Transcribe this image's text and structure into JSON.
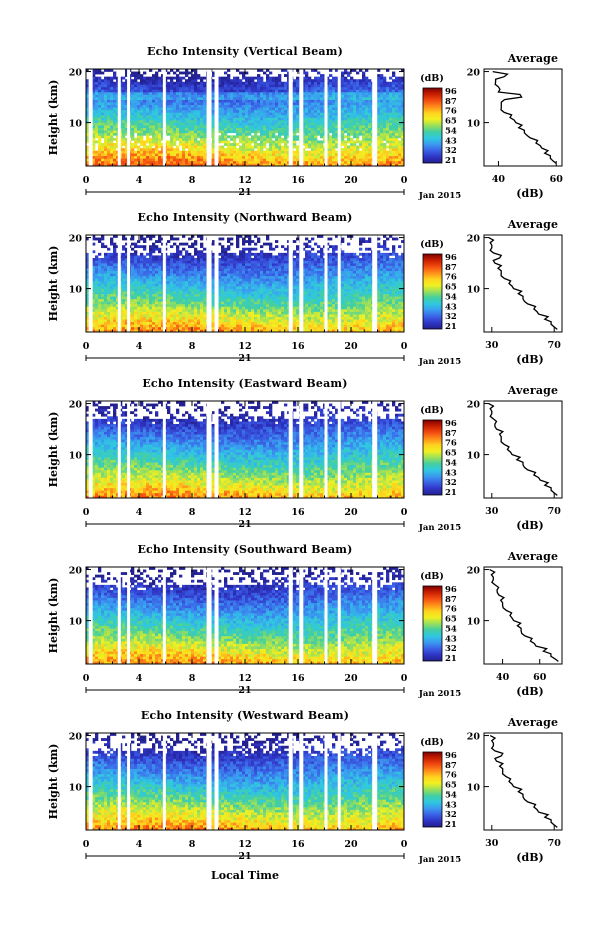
{
  "figure": {
    "x_label": "Local Time",
    "colorbar_unit": "(dB)",
    "colorbar_ticks": [
      "96",
      "87",
      "76",
      "65",
      "54",
      "43",
      "32",
      "21"
    ],
    "colorbar_colors": [
      "#7f0000",
      "#c81e00",
      "#f24d10",
      "#ff8c1a",
      "#ffd21f",
      "#f0f020",
      "#9be05a",
      "#43cfa0",
      "#2fc8e0",
      "#3a9af0",
      "#3a62e6",
      "#2f35c6",
      "#22208e"
    ]
  },
  "chart_data": [
    {
      "type": "heatmap",
      "title": "Echo Intensity (Vertical Beam)",
      "ylabel": "Height (km)",
      "xlabel": "Local Time",
      "x_ticks": [
        "0",
        "4",
        "8",
        "12",
        "16",
        "20",
        "0"
      ],
      "date_label": "21",
      "month_label": "Jan 2015",
      "y_ticks": [
        "10",
        "20"
      ],
      "xlim": [
        0,
        24
      ],
      "ylim": [
        1.5,
        20.5
      ],
      "colorbar": {
        "unit": "(dB)",
        "ticks": [
          96,
          87,
          76,
          65,
          54,
          43,
          32,
          21
        ]
      },
      "profile": {
        "title": "Average",
        "xlabel": "(dB)",
        "x_ticks": [
          "40",
          "60"
        ],
        "y_ticks": [
          "10",
          "20"
        ],
        "xlim": [
          35,
          62
        ],
        "ylim": [
          1.5,
          20.5
        ],
        "height_km": [
          2,
          3,
          4,
          5,
          6,
          7,
          8,
          9,
          10,
          11,
          12,
          13,
          14,
          15,
          16,
          17,
          18,
          19,
          20
        ],
        "avg_db": [
          60,
          58,
          56,
          55,
          53,
          51,
          49,
          47,
          46,
          44,
          42,
          41,
          41,
          48,
          40,
          40,
          39,
          42,
          38
        ]
      }
    },
    {
      "type": "heatmap",
      "title": "Echo Intensity (Northward Beam)",
      "ylabel": "Height (km)",
      "xlabel": "Local Time",
      "x_ticks": [
        "0",
        "4",
        "8",
        "12",
        "16",
        "20",
        "0"
      ],
      "date_label": "21",
      "month_label": "Jan 2015",
      "y_ticks": [
        "10",
        "20"
      ],
      "xlim": [
        0,
        24
      ],
      "ylim": [
        1.5,
        20.5
      ],
      "colorbar": {
        "unit": "(dB)",
        "ticks": [
          96,
          87,
          76,
          65,
          54,
          43,
          32,
          21
        ]
      },
      "profile": {
        "title": "Average",
        "xlabel": "(dB)",
        "x_ticks": [
          "30",
          "70"
        ],
        "y_ticks": [
          "10",
          "20"
        ],
        "xlim": [
          25,
          75
        ],
        "ylim": [
          1.5,
          20.5
        ],
        "height_km": [
          2,
          3,
          4,
          5,
          6,
          7,
          8,
          9,
          10,
          11,
          12,
          13,
          14,
          15,
          16,
          17,
          18,
          19,
          20
        ],
        "avg_db": [
          72,
          68,
          64,
          60,
          57,
          53,
          50,
          47,
          44,
          41,
          38,
          36,
          34,
          32,
          35,
          31,
          30,
          29,
          28
        ]
      }
    },
    {
      "type": "heatmap",
      "title": "Echo Intensity (Eastward Beam)",
      "ylabel": "Height (km)",
      "xlabel": "Local Time",
      "x_ticks": [
        "0",
        "4",
        "8",
        "12",
        "16",
        "20",
        "0"
      ],
      "date_label": "21",
      "month_label": "Jan 2015",
      "y_ticks": [
        "10",
        "20"
      ],
      "xlim": [
        0,
        24
      ],
      "ylim": [
        1.5,
        20.5
      ],
      "colorbar": {
        "unit": "(dB)",
        "ticks": [
          96,
          87,
          76,
          65,
          54,
          43,
          32,
          21
        ]
      },
      "profile": {
        "title": "Average",
        "xlabel": "(dB)",
        "x_ticks": [
          "30",
          "70"
        ],
        "y_ticks": [
          "10",
          "20"
        ],
        "xlim": [
          25,
          75
        ],
        "ylim": [
          1.5,
          20.5
        ],
        "height_km": [
          2,
          3,
          4,
          5,
          6,
          7,
          8,
          9,
          10,
          11,
          12,
          13,
          14,
          15,
          16,
          17,
          18,
          19,
          20
        ],
        "avg_db": [
          72,
          68,
          64,
          61,
          57,
          53,
          50,
          46,
          43,
          40,
          38,
          36,
          35,
          33,
          32,
          31,
          30,
          29,
          28
        ]
      }
    },
    {
      "type": "heatmap",
      "title": "Echo Intensity (Southward Beam)",
      "ylabel": "Height (km)",
      "xlabel": "Local Time",
      "x_ticks": [
        "0",
        "4",
        "8",
        "12",
        "16",
        "20",
        "0"
      ],
      "date_label": "21",
      "month_label": "Jan 2015",
      "y_ticks": [
        "10",
        "20"
      ],
      "xlim": [
        0,
        24
      ],
      "ylim": [
        1.5,
        20.5
      ],
      "colorbar": {
        "unit": "(dB)",
        "ticks": [
          96,
          87,
          76,
          65,
          54,
          43,
          32,
          21
        ]
      },
      "profile": {
        "title": "Average",
        "xlabel": "(dB)",
        "x_ticks": [
          "40",
          "60"
        ],
        "y_ticks": [
          "10",
          "20"
        ],
        "xlim": [
          30,
          72
        ],
        "ylim": [
          1.5,
          20.5
        ],
        "height_km": [
          2,
          3,
          4,
          5,
          6,
          7,
          8,
          9,
          10,
          11,
          12,
          13,
          14,
          15,
          16,
          17,
          18,
          19,
          20
        ],
        "avg_db": [
          70,
          66,
          62,
          58,
          55,
          52,
          50,
          48,
          46,
          44,
          42,
          40,
          39,
          38,
          37,
          36,
          35,
          34,
          33
        ]
      }
    },
    {
      "type": "heatmap",
      "title": "Echo Intensity (Westward Beam)",
      "ylabel": "Height (km)",
      "xlabel": "Local Time",
      "x_ticks": [
        "0",
        "4",
        "8",
        "12",
        "16",
        "20",
        "0"
      ],
      "date_label": "21",
      "month_label": "Jan 2015",
      "y_ticks": [
        "10",
        "20"
      ],
      "xlim": [
        0,
        24
      ],
      "ylim": [
        1.5,
        20.5
      ],
      "colorbar": {
        "unit": "(dB)",
        "ticks": [
          96,
          87,
          76,
          65,
          54,
          43,
          32,
          21
        ]
      },
      "profile": {
        "title": "Average",
        "xlabel": "(dB)",
        "x_ticks": [
          "30",
          "70"
        ],
        "y_ticks": [
          "10",
          "20"
        ],
        "xlim": [
          25,
          75
        ],
        "ylim": [
          1.5,
          20.5
        ],
        "height_km": [
          2,
          3,
          4,
          5,
          6,
          7,
          8,
          9,
          10,
          11,
          12,
          13,
          14,
          15,
          16,
          17,
          18,
          19,
          20
        ],
        "avg_db": [
          72,
          68,
          64,
          60,
          57,
          53,
          50,
          47,
          44,
          41,
          39,
          37,
          35,
          33,
          36,
          32,
          31,
          30,
          29
        ]
      }
    }
  ]
}
